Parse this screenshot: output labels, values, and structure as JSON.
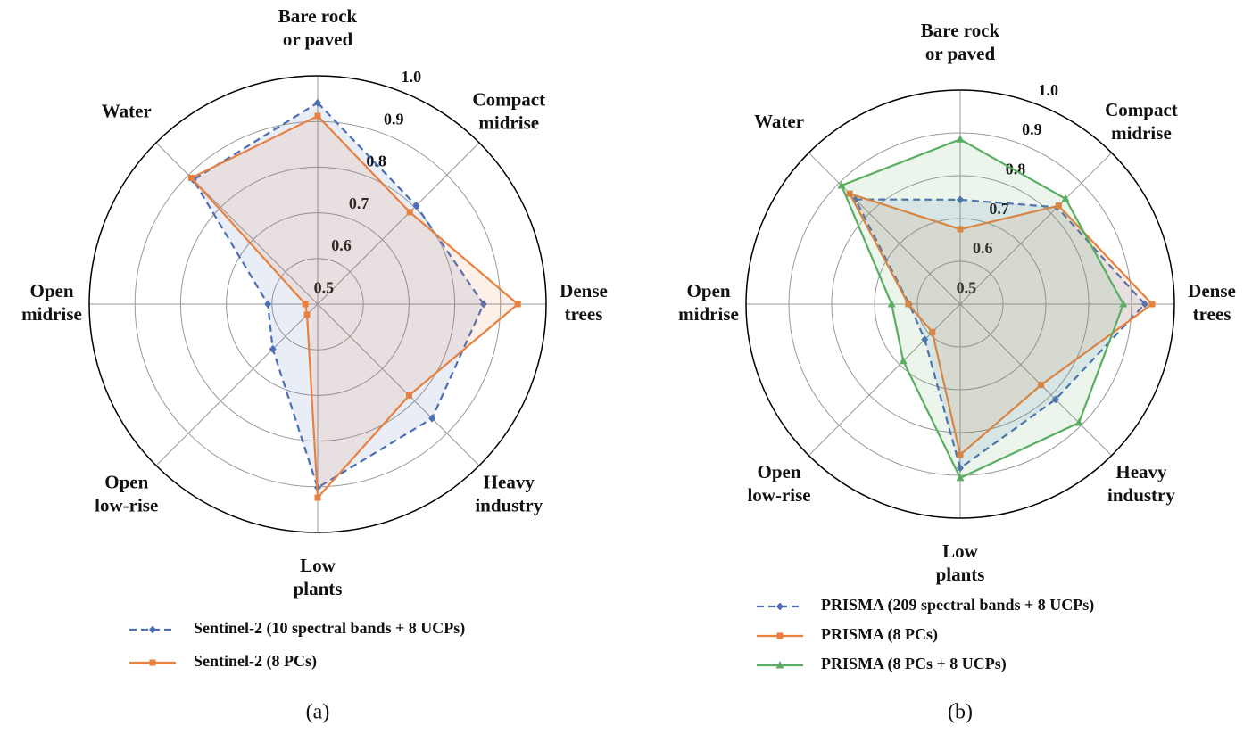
{
  "chart_data": [
    {
      "type": "radar",
      "caption": "(a)",
      "categories": [
        "Bare rock\nor paved",
        "Compact\nmidrise",
        "Dense\ntrees",
        "Heavy\nindustry",
        "Low\nplants",
        "Open\nlow-rise",
        "Open\nmidrise",
        "Water"
      ],
      "ylim": [
        0.5,
        1
      ],
      "yticks": [
        0.5,
        0.6,
        0.7,
        0.8,
        0.9,
        {
          "value": 1,
          "label": "1.0"
        }
      ],
      "grid": true,
      "series": [
        {
          "name": "Sentinel-2 (10 spectral bands + 8 UCPs)",
          "color": "#4a6fb5",
          "marker": "diamond",
          "linestyle": "dashed",
          "values": [
            0.941,
            0.805,
            0.863,
            0.854,
            0.902,
            0.639,
            0.609,
            0.885
          ]
        },
        {
          "name": "Sentinel-2 (8 PCs)",
          "color": "#e8803f",
          "marker": "square",
          "linestyle": "solid",
          "values": [
            0.912,
            0.785,
            0.938,
            0.783,
            0.924,
            0.533,
            0.527,
            0.891
          ]
        }
      ]
    },
    {
      "type": "radar",
      "caption": "(b)",
      "categories": [
        "Bare rock\nor paved",
        "Compact\nmidrise",
        "Dense\ntrees",
        "Heavy\nindustry",
        "Low\nplants",
        "Open\nlow-rise",
        "Open\nmidrise",
        "Water"
      ],
      "ylim": [
        0.5,
        1
      ],
      "yticks": [
        0.5,
        0.6,
        0.7,
        0.8,
        0.9,
        {
          "value": 1,
          "label": "1.0"
        }
      ],
      "grid": true,
      "series": [
        {
          "name": "PRISMA (209 spectral bands + 8 UCPs)",
          "color": "#4a6fb5",
          "marker": "diamond",
          "linestyle": "dashed",
          "values": [
            0.744,
            0.82,
            0.931,
            0.815,
            0.883,
            0.617,
            0.619,
            0.846
          ]
        },
        {
          "name": "PRISMA (8 PCs)",
          "color": "#e8803f",
          "marker": "square",
          "linestyle": "solid",
          "values": [
            0.675,
            0.825,
            0.948,
            0.767,
            0.852,
            0.592,
            0.621,
            0.865
          ]
        },
        {
          "name": "PRISMA (8 PCs + 8 UCPs)",
          "color": "#5aae61",
          "marker": "triangle",
          "linestyle": "solid",
          "values": [
            0.885,
            0.848,
            0.881,
            0.892,
            0.906,
            0.688,
            0.66,
            0.892
          ]
        }
      ]
    }
  ]
}
